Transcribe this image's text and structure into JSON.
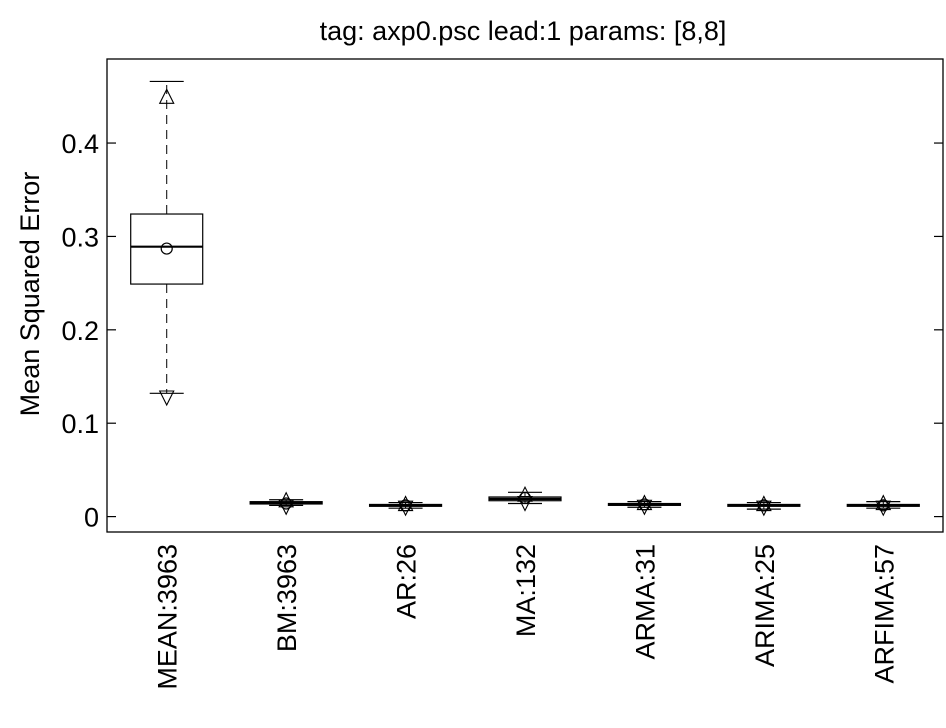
{
  "chart_data": {
    "type": "box",
    "title": "tag: axp0.psc lead:1 params: [8,8]",
    "ylabel": "Mean Squared Error",
    "xlabel": "",
    "ylim": [
      -0.0165,
      0.49
    ],
    "yticks": [
      0,
      0.1,
      0.2,
      0.3,
      0.4
    ],
    "ytick_labels": [
      "0",
      "0.1",
      "0.2",
      "0.3",
      "0.4"
    ],
    "grid": false,
    "categories": [
      "MEAN:3963",
      "BM:3963",
      "AR:26",
      "MA:132",
      "ARMA:31",
      "ARIMA:25",
      "ARFIMA:57"
    ],
    "boxes": [
      {
        "whisker_low": 0.132,
        "q1": 0.249,
        "median": 0.289,
        "q3": 0.324,
        "whisker_high": 0.466,
        "mean": 0.287,
        "p_low": 0.127,
        "p_high": 0.45
      },
      {
        "whisker_low": 0.012,
        "q1": 0.0135,
        "median": 0.0145,
        "q3": 0.016,
        "whisker_high": 0.018,
        "mean": 0.014,
        "p_low": 0.01,
        "p_high": 0.018
      },
      {
        "whisker_low": 0.009,
        "q1": 0.011,
        "median": 0.012,
        "q3": 0.013,
        "whisker_high": 0.015,
        "mean": 0.012,
        "p_low": 0.009,
        "p_high": 0.014
      },
      {
        "whisker_low": 0.014,
        "q1": 0.017,
        "median": 0.019,
        "q3": 0.021,
        "whisker_high": 0.026,
        "mean": 0.02,
        "p_low": 0.014,
        "p_high": 0.024
      },
      {
        "whisker_low": 0.01,
        "q1": 0.012,
        "median": 0.013,
        "q3": 0.014,
        "whisker_high": 0.016,
        "mean": 0.013,
        "p_low": 0.01,
        "p_high": 0.015
      },
      {
        "whisker_low": 0.008,
        "q1": 0.011,
        "median": 0.012,
        "q3": 0.013,
        "whisker_high": 0.015,
        "mean": 0.012,
        "p_low": 0.009,
        "p_high": 0.014
      },
      {
        "whisker_low": 0.009,
        "q1": 0.011,
        "median": 0.012,
        "q3": 0.013,
        "whisker_high": 0.016,
        "mean": 0.012,
        "p_low": 0.009,
        "p_high": 0.015
      }
    ]
  }
}
